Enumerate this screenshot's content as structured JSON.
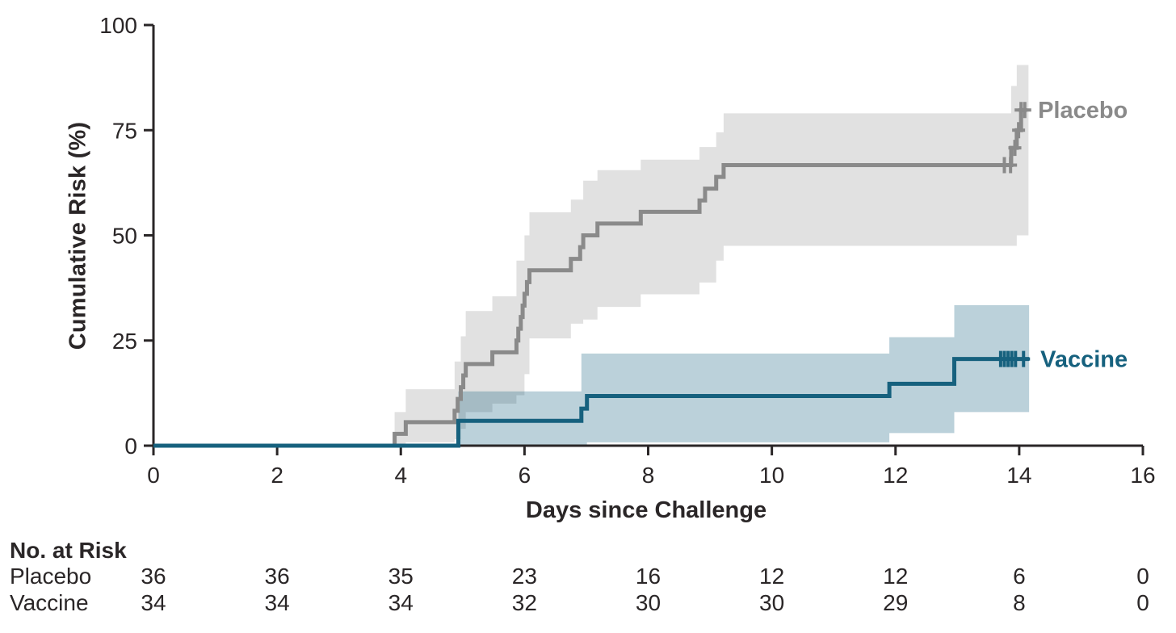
{
  "axes": {
    "ylabel": "Cumulative Risk (%)",
    "xlabel": "Days since Challenge",
    "axis_color": "#2a2627",
    "text_color": "#2a2627"
  },
  "chart_data": {
    "type": "line",
    "subtype": "kaplan-meier-cumulative-risk-step",
    "title": "",
    "xlabel": "Days since Challenge",
    "ylabel": "Cumulative Risk (%)",
    "xlim": [
      0,
      16
    ],
    "ylim": [
      0,
      100
    ],
    "xticks": [
      0,
      2,
      4,
      6,
      8,
      10,
      12,
      14,
      16
    ],
    "yticks": [
      0,
      25,
      50,
      75,
      100
    ],
    "grid": false,
    "legend_position": "end-of-line-labels",
    "series": [
      {
        "name": "Placebo",
        "color": "#8a8a8a",
        "band_color": "rgba(40,40,40,0.14)",
        "points": [
          [
            0,
            0
          ],
          [
            3.9,
            2.8
          ],
          [
            4.08,
            5.6
          ],
          [
            4.87,
            8.3
          ],
          [
            4.92,
            11.1
          ],
          [
            4.97,
            13.9
          ],
          [
            5.01,
            16.7
          ],
          [
            5.05,
            19.4
          ],
          [
            5.48,
            22.2
          ],
          [
            5.87,
            25.0
          ],
          [
            5.9,
            27.8
          ],
          [
            5.94,
            30.6
          ],
          [
            5.97,
            33.3
          ],
          [
            6.0,
            36.1
          ],
          [
            6.04,
            38.9
          ],
          [
            6.08,
            41.7
          ],
          [
            6.75,
            44.4
          ],
          [
            6.9,
            47.2
          ],
          [
            6.95,
            50.0
          ],
          [
            7.18,
            52.8
          ],
          [
            7.88,
            55.6
          ],
          [
            8.83,
            58.3
          ],
          [
            8.92,
            61.1
          ],
          [
            9.1,
            63.9
          ],
          [
            9.22,
            66.7
          ],
          [
            13.87,
            70.8
          ],
          [
            13.96,
            75.0
          ],
          [
            14.03,
            79.8
          ]
        ],
        "end_day": 14.12,
        "censors": [
          [
            13.76,
            66.7
          ],
          [
            13.86,
            66.7
          ],
          [
            13.93,
            70.8
          ],
          [
            13.99,
            75.0
          ],
          [
            14.03,
            79.8
          ],
          [
            14.09,
            79.8
          ]
        ],
        "band": [
          [
            3.9,
            0,
            8
          ],
          [
            4.08,
            0.8,
            13.4
          ],
          [
            4.87,
            1.5,
            20
          ],
          [
            4.97,
            4,
            26
          ],
          [
            5.05,
            8,
            32
          ],
          [
            5.48,
            10,
            35.5
          ],
          [
            5.87,
            12,
            44
          ],
          [
            6.0,
            17,
            50
          ],
          [
            6.08,
            25.5,
            55.5
          ],
          [
            6.75,
            29,
            58.5
          ],
          [
            6.95,
            30,
            63
          ],
          [
            7.18,
            33,
            65.5
          ],
          [
            7.88,
            36,
            68
          ],
          [
            8.83,
            38.8,
            71
          ],
          [
            9.1,
            44,
            74.5
          ],
          [
            9.22,
            47.5,
            79
          ],
          [
            13.87,
            47.5,
            85.5
          ],
          [
            13.96,
            50,
            90.5
          ]
        ],
        "band_end_day": 14.15
      },
      {
        "name": "Vaccine",
        "color": "#16617e",
        "band_color": "rgba(22,97,126,0.29)",
        "points": [
          [
            0,
            0
          ],
          [
            4.93,
            5.9
          ],
          [
            6.92,
            8.8
          ],
          [
            7.01,
            11.8
          ],
          [
            11.9,
            14.7
          ],
          [
            12.95,
            20.6
          ]
        ],
        "end_day": 14.16,
        "censors": [
          [
            13.7,
            20.6
          ],
          [
            13.76,
            20.6
          ],
          [
            13.82,
            20.6
          ],
          [
            13.88,
            20.6
          ],
          [
            13.94,
            20.6
          ],
          [
            14.07,
            20.6
          ]
        ],
        "band": [
          [
            4.93,
            0,
            12.9
          ],
          [
            6.92,
            0,
            21.9
          ],
          [
            7.01,
            0.8,
            21.9
          ],
          [
            11.9,
            3,
            25.8
          ],
          [
            12.95,
            8,
            33.4
          ]
        ],
        "band_end_day": 14.16
      }
    ]
  },
  "at_risk": {
    "title": "No. at Risk",
    "days": [
      0,
      2,
      4,
      6,
      8,
      10,
      12,
      14,
      16
    ],
    "rows": [
      {
        "label": "Placebo",
        "values": [
          36,
          36,
          35,
          23,
          16,
          12,
          12,
          6,
          0
        ]
      },
      {
        "label": "Vaccine",
        "values": [
          34,
          34,
          34,
          32,
          30,
          30,
          29,
          8,
          0
        ]
      }
    ]
  }
}
